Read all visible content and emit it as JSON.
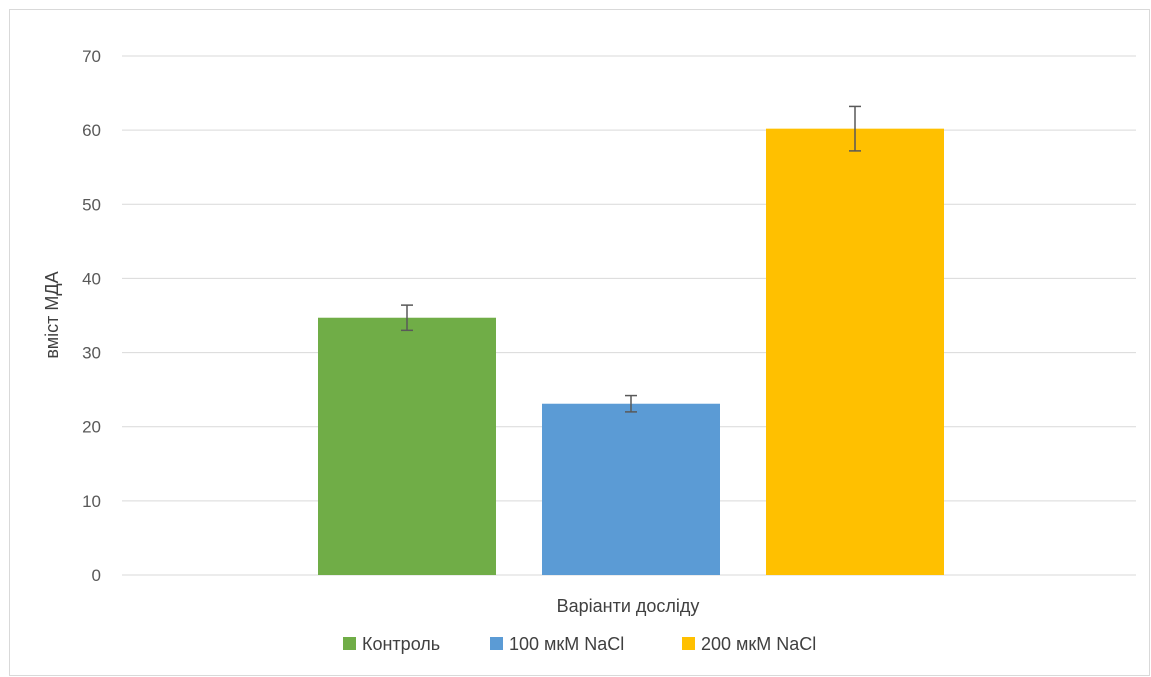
{
  "chart_data": {
    "type": "bar",
    "title": "",
    "xlabel": "Варіанти досліду",
    "ylabel": "вміст МДА",
    "ylim": [
      0,
      70
    ],
    "yticks": [
      0,
      10,
      20,
      30,
      40,
      50,
      60,
      70
    ],
    "grid": true,
    "legend_position": "bottom",
    "series": [
      {
        "name": "Контроль",
        "value": 34.7,
        "error": 1.7,
        "color": "#70ad47"
      },
      {
        "name": "100 мкМ NaCl",
        "value": 23.1,
        "error": 1.1,
        "color": "#5b9bd5"
      },
      {
        "name": "200 мкМ NaCl",
        "value": 60.2,
        "error": 3.0,
        "color": "#ffc000"
      }
    ]
  }
}
